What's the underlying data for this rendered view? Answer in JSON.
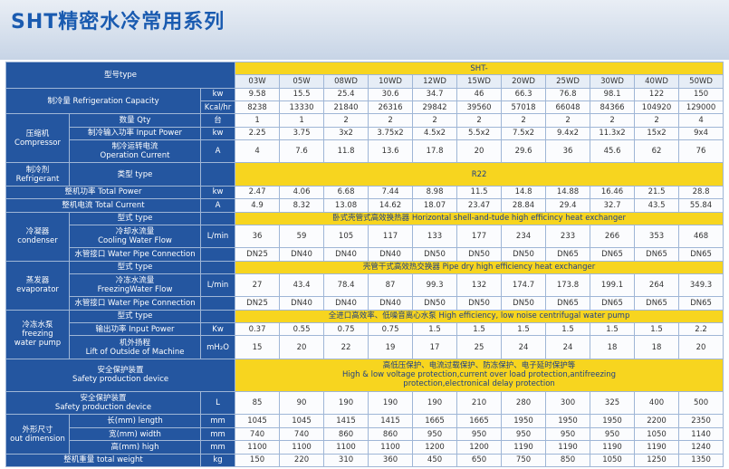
{
  "title": "SHT精密水冷常用系列",
  "table": {
    "header_label": "型号type",
    "series_label": "SHT-",
    "models": [
      "03W",
      "05W",
      "08WD",
      "10WD",
      "12WD",
      "15WD",
      "20WD",
      "25WD",
      "30WD",
      "40WD",
      "50WD"
    ],
    "sections": [
      {
        "label": "制冷量  Refrigeration Capacity",
        "rows": [
          {
            "unit": "kw",
            "values": [
              9.58,
              15.5,
              25.4,
              30.6,
              34.7,
              46,
              66.3,
              76.8,
              98.1,
              122,
              150
            ]
          },
          {
            "unit": "Kcal/hr",
            "values": [
              8238,
              13330,
              21840,
              26316,
              29842,
              39560,
              57018,
              66048,
              84366,
              104920,
              129000
            ]
          }
        ]
      },
      {
        "label": "压缩机\nCompressor",
        "rows": [
          {
            "label": "数量  Qty",
            "unit": "台",
            "values": [
              1,
              1,
              2,
              2,
              2,
              2,
              2,
              2,
              2,
              2,
              4
            ]
          },
          {
            "label": "制冷输入功率  Input Power",
            "unit": "kw",
            "values": [
              2.25,
              3.75,
              "3x2",
              "3.75x2",
              "4.5x2",
              "5.5x2",
              "7.5x2",
              "9.4x2",
              "11.3x2",
              "15x2",
              "9x4"
            ]
          },
          {
            "label": "制冷运转电流\nOperation Current",
            "unit": "A",
            "values": [
              4,
              7.6,
              11.8,
              13.6,
              17.8,
              20,
              29.6,
              36,
              45.6,
              62,
              76
            ]
          }
        ]
      },
      {
        "label": "制冷剂\nRefrigerant",
        "rows": [
          {
            "label": "类型  type",
            "text": "R22"
          }
        ]
      },
      {
        "rows": [
          {
            "label": "整机功率  Total Power",
            "unit": "kw",
            "values": [
              2.47,
              4.06,
              6.68,
              7.44,
              8.98,
              11.5,
              14.8,
              14.88,
              16.46,
              21.5,
              28.8
            ]
          }
        ]
      },
      {
        "rows": [
          {
            "label": "整机电流  Total Current",
            "unit": "A",
            "values": [
              4.9,
              8.32,
              13.08,
              14.62,
              18.07,
              23.47,
              28.84,
              29.4,
              32.7,
              43.5,
              55.84
            ]
          }
        ]
      },
      {
        "label": "冷凝器\ncondenser",
        "rows": [
          {
            "label": "型式  type",
            "text": "卧式壳管式高效换热器   Horizontal shell-and-tude high efficincy heat exchanger"
          },
          {
            "label": "冷却水流量\nCooling Water Flow",
            "unit": "L/min",
            "values": [
              36,
              59,
              105,
              117,
              133,
              177,
              234,
              233,
              266,
              353,
              468
            ]
          },
          {
            "label": "水管接口  Water Pipe Connection",
            "values": [
              "DN25",
              "DN40",
              "DN40",
              "DN40",
              "DN50",
              "DN50",
              "DN50",
              "DN65",
              "DN65",
              "DN65",
              "DN65"
            ]
          }
        ]
      },
      {
        "label": "蒸发器\nevaporator",
        "rows": [
          {
            "label": "型式  type",
            "text": "壳管干式高效热交换器   Pipe dry high efficiency heat exchanger"
          },
          {
            "label": "冷冻水流量\nFreezingWater Flow",
            "unit": "L/min",
            "values": [
              27,
              43.4,
              78.4,
              87,
              99.3,
              132,
              174.7,
              173.8,
              199.1,
              264,
              349.3
            ]
          },
          {
            "label": "水管接口  Water Pipe Connection",
            "values": [
              "DN25",
              "DN40",
              "DN40",
              "DN40",
              "DN50",
              "DN50",
              "DN50",
              "DN65",
              "DN65",
              "DN65",
              "DN65"
            ]
          }
        ]
      },
      {
        "label": "冷冻水泵\nfreezing\nwater pump",
        "rows": [
          {
            "label": "型式  type",
            "text": "全进口高效率、低噪音离心水泵   High  efficiency, low noise centrifugal water pump"
          },
          {
            "label": "输出功率  Input Power",
            "unit": "Kw",
            "values": [
              0.37,
              0.55,
              0.75,
              0.75,
              1.5,
              1.5,
              1.5,
              1.5,
              1.5,
              1.5,
              2.2
            ]
          },
          {
            "label": "机外扬程\nLift of Outside of Machine",
            "unit": "mH₂O",
            "values": [
              15,
              20,
              22,
              19,
              17,
              25,
              24,
              24,
              18,
              18,
              20
            ]
          }
        ]
      },
      {
        "rows": [
          {
            "label": "安全保护装置\nSafety production device",
            "text": "高低压保护、电流过载保护、防冻保护、电子延时保护等\nHigh & low voltage protection,current over load protection,antifreezing\nprotection,electronical delay protection"
          }
        ]
      },
      {
        "rows": [
          {
            "label": "安全保护装置\nSafety production device",
            "unit": "L",
            "values": [
              85,
              90,
              190,
              190,
              190,
              210,
              280,
              300,
              325,
              400,
              500
            ]
          }
        ]
      },
      {
        "label": "外形尺寸\nout dimension",
        "rows": [
          {
            "label": "长(mm) length",
            "unit": "mm",
            "values": [
              1045,
              1045,
              1415,
              1415,
              1665,
              1665,
              1950,
              1950,
              1950,
              2200,
              2350
            ]
          },
          {
            "label": "宽(mm) width",
            "unit": "mm",
            "values": [
              740,
              740,
              860,
              860,
              950,
              950,
              950,
              950,
              950,
              1050,
              1140
            ]
          },
          {
            "label": "高(mm) high",
            "unit": "mm",
            "values": [
              1100,
              1100,
              1100,
              1100,
              1200,
              1200,
              1190,
              1190,
              1190,
              1190,
              1240
            ]
          }
        ]
      },
      {
        "rows": [
          {
            "label": "整机重量  total weight",
            "unit": "kg",
            "values": [
              150,
              220,
              310,
              360,
              450,
              650,
              750,
              850,
              1050,
              1250,
              1350
            ]
          }
        ]
      }
    ]
  }
}
